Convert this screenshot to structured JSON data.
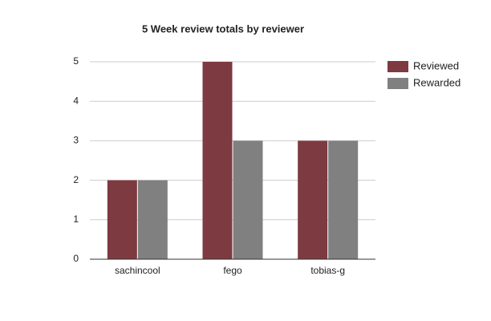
{
  "chart_data": {
    "type": "bar",
    "title": "5 Week review totals by reviewer",
    "categories": [
      "sachincool",
      "fego",
      "tobias-g"
    ],
    "series": [
      {
        "name": "Reviewed",
        "color": "#7e3a41",
        "values": [
          2,
          5,
          3
        ]
      },
      {
        "name": "Rewarded",
        "color": "#808080",
        "values": [
          2,
          3,
          3
        ]
      }
    ],
    "ylim": [
      0,
      5
    ],
    "yticks": [
      0,
      1,
      2,
      3,
      4,
      5
    ],
    "grid": true,
    "legend": "right"
  }
}
